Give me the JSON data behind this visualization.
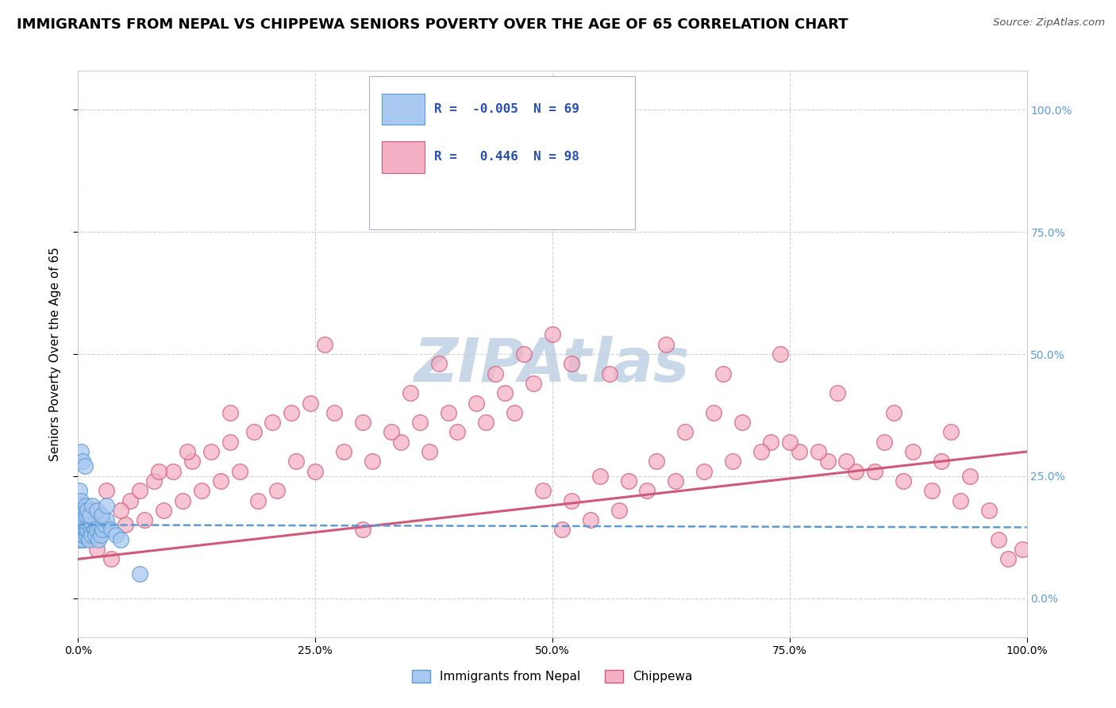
{
  "title": "IMMIGRANTS FROM NEPAL VS CHIPPEWA SENIORS POVERTY OVER THE AGE OF 65 CORRELATION CHART",
  "source": "Source: ZipAtlas.com",
  "ylabel": "Seniors Poverty Over the Age of 65",
  "xlim": [
    0,
    100
  ],
  "ylim": [
    -8,
    108
  ],
  "x_ticks": [
    0,
    25,
    50,
    75,
    100
  ],
  "x_tick_labels": [
    "0.0%",
    "25.0%",
    "50.0%",
    "75.0%",
    "100.0%"
  ],
  "y_ticks": [
    0,
    25,
    50,
    75,
    100
  ],
  "y_tick_labels": [
    "0.0%",
    "25.0%",
    "50.0%",
    "75.0%",
    "100.0%"
  ],
  "series": [
    {
      "name": "Immigrants from Nepal",
      "R": -0.005,
      "N": 69,
      "color": "#a8c8f0",
      "edge_color": "#5b9bd5",
      "line_color": "#5b9bd5",
      "line_style": "--",
      "trend_intercept": 15.0,
      "trend_slope": -0.005,
      "scatter_x": [
        0.05,
        0.08,
        0.1,
        0.12,
        0.15,
        0.18,
        0.2,
        0.22,
        0.25,
        0.28,
        0.3,
        0.33,
        0.35,
        0.38,
        0.4,
        0.42,
        0.45,
        0.48,
        0.5,
        0.55,
        0.6,
        0.65,
        0.7,
        0.75,
        0.8,
        0.85,
        0.9,
        0.95,
        1.0,
        1.1,
        1.2,
        1.3,
        1.4,
        1.5,
        1.6,
        1.7,
        1.8,
        1.9,
        2.0,
        2.1,
        2.2,
        2.4,
        2.6,
        2.8,
        3.0,
        3.5,
        4.0,
        4.5,
        0.1,
        0.15,
        0.2,
        0.25,
        0.3,
        0.4,
        0.5,
        0.6,
        0.7,
        0.8,
        0.9,
        1.0,
        1.2,
        1.5,
        2.0,
        2.5,
        3.0,
        0.3,
        0.5,
        0.7,
        6.5
      ],
      "scatter_y": [
        12,
        13,
        14,
        15,
        13,
        16,
        14,
        15,
        12,
        14,
        13,
        15,
        14,
        13,
        15,
        14,
        12,
        15,
        14,
        13,
        15,
        14,
        16,
        14,
        15,
        13,
        14,
        15,
        14,
        12,
        15,
        14,
        13,
        15,
        16,
        14,
        13,
        15,
        14,
        12,
        15,
        13,
        14,
        15,
        16,
        14,
        13,
        12,
        22,
        18,
        19,
        17,
        20,
        18,
        16,
        17,
        18,
        19,
        17,
        18,
        17,
        19,
        18,
        17,
        19,
        30,
        28,
        27,
        5
      ]
    },
    {
      "name": "Chippewa",
      "R": 0.446,
      "N": 98,
      "color": "#f4b0c4",
      "edge_color": "#d05878",
      "line_color": "#d05878",
      "line_style": "-",
      "trend_intercept": 8.0,
      "trend_slope": 0.22,
      "scatter_x": [
        0.5,
        1.0,
        2.0,
        3.5,
        5.0,
        7.0,
        9.0,
        11.0,
        13.0,
        15.0,
        17.0,
        19.0,
        21.0,
        23.0,
        25.0,
        28.0,
        31.0,
        34.0,
        37.0,
        40.0,
        43.0,
        46.0,
        49.0,
        52.0,
        55.0,
        58.0,
        61.0,
        64.0,
        67.0,
        70.0,
        73.0,
        76.0,
        79.0,
        82.0,
        85.0,
        88.0,
        91.0,
        94.0,
        97.0,
        99.5,
        1.5,
        3.0,
        5.5,
        8.0,
        10.0,
        12.0,
        14.0,
        16.0,
        18.5,
        20.5,
        22.5,
        24.5,
        27.0,
        30.0,
        33.0,
        36.0,
        39.0,
        42.0,
        45.0,
        48.0,
        51.0,
        54.0,
        57.0,
        60.0,
        63.0,
        66.0,
        69.0,
        72.0,
        75.0,
        78.0,
        81.0,
        84.0,
        87.0,
        90.0,
        93.0,
        96.0,
        2.5,
        4.5,
        6.5,
        8.5,
        11.5,
        16.0,
        35.0,
        38.0,
        44.0,
        47.0,
        50.0,
        56.0,
        62.0,
        68.0,
        74.0,
        80.0,
        86.0,
        92.0,
        98.0,
        26.0,
        30.0,
        52.0
      ],
      "scatter_y": [
        12,
        14,
        10,
        8,
        15,
        16,
        18,
        20,
        22,
        24,
        26,
        20,
        22,
        28,
        26,
        30,
        28,
        32,
        30,
        34,
        36,
        38,
        22,
        20,
        25,
        24,
        28,
        34,
        38,
        36,
        32,
        30,
        28,
        26,
        32,
        30,
        28,
        25,
        12,
        10,
        18,
        22,
        20,
        24,
        26,
        28,
        30,
        32,
        34,
        36,
        38,
        40,
        38,
        36,
        34,
        36,
        38,
        40,
        42,
        44,
        14,
        16,
        18,
        22,
        24,
        26,
        28,
        30,
        32,
        30,
        28,
        26,
        24,
        22,
        20,
        18,
        14,
        18,
        22,
        26,
        30,
        38,
        42,
        48,
        46,
        50,
        54,
        46,
        52,
        46,
        50,
        42,
        38,
        34,
        8,
        52,
        14,
        48
      ]
    }
  ],
  "watermark": "ZIPAtlas",
  "watermark_color": "#c8d8e8",
  "watermark_fontsize": 55,
  "legend_color": "#2850b0",
  "title_fontsize": 13,
  "axis_label_fontsize": 11,
  "tick_fontsize": 10,
  "right_tick_color": "#5b9bd5",
  "background_color": "#ffffff",
  "grid_color": "#cccccc"
}
